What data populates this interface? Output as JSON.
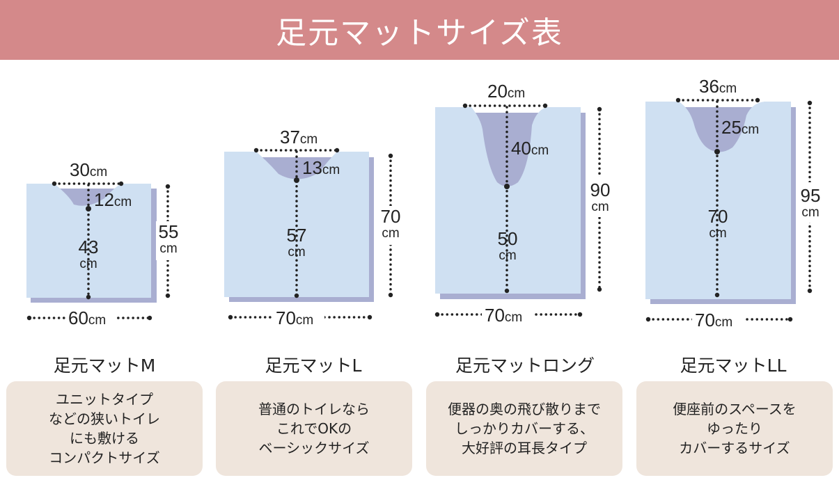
{
  "title": "足元マットサイズ表",
  "dim_unit": "cm",
  "colors": {
    "banner": "#d4898a",
    "mat": "#cfe0f2",
    "mat_shadow": "#a9aed1",
    "card": "#efe5dc",
    "dots": "#222222"
  },
  "mats": [
    {
      "name": "足元マットM",
      "cutout_width": "30",
      "cutout_depth": "12",
      "side_length": "43",
      "total_length": "55",
      "width": "60",
      "description": [
        "ユニットタイプ",
        "などの狭いトイレ",
        "にも敷ける",
        "コンパクトサイズ"
      ]
    },
    {
      "name": "足元マットL",
      "cutout_width": "37",
      "cutout_depth": "13",
      "side_length": "57",
      "total_length": "70",
      "width": "70",
      "description": [
        "普通のトイレなら",
        "これでOKの",
        "ベーシックサイズ"
      ]
    },
    {
      "name": "足元マットロング",
      "cutout_width": "20",
      "cutout_depth": "40",
      "side_length": "50",
      "total_length": "90",
      "width": "70",
      "description": [
        "便器の奥の飛び散りまで",
        "しっかりカバーする、",
        "大好評の耳長タイプ"
      ]
    },
    {
      "name": "足元マットLL",
      "cutout_width": "36",
      "cutout_depth": "25",
      "side_length": "70",
      "total_length": "95",
      "width": "70",
      "description": [
        "便座前のスペースを",
        "ゆったり",
        "カバーするサイズ"
      ]
    }
  ]
}
